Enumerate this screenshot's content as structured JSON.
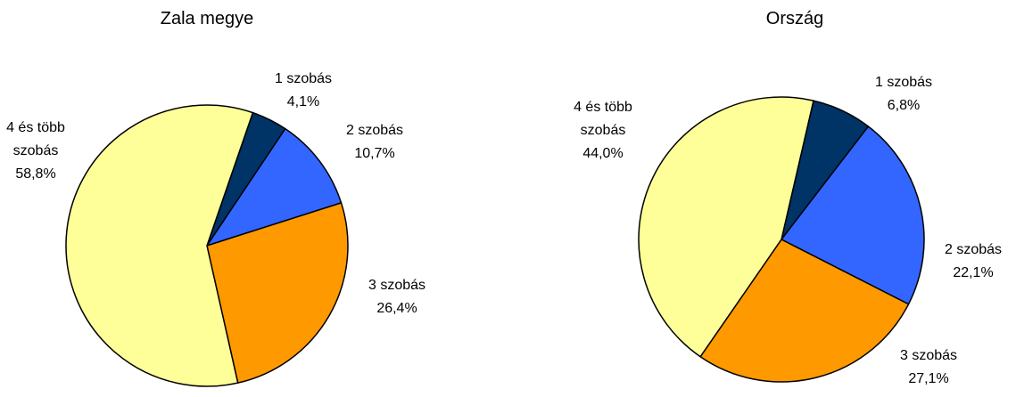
{
  "chart_data": [
    {
      "type": "pie",
      "title": "Zala megye",
      "categories": [
        "1 szobás",
        "2 szobás",
        "3 szobás",
        "4 és több szobás"
      ],
      "values": [
        4.1,
        10.7,
        26.4,
        58.8
      ],
      "unit": "%",
      "labels": [
        {
          "lines": [
            "1 szobás",
            "4,1%"
          ]
        },
        {
          "lines": [
            "2 szobás",
            "10,7%"
          ]
        },
        {
          "lines": [
            "3 szobás",
            "26,4%"
          ]
        },
        {
          "lines": [
            "4 és több",
            "szobás",
            "58,8%"
          ]
        }
      ],
      "legend": "none"
    },
    {
      "type": "pie",
      "title": "Ország",
      "categories": [
        "1 szobás",
        "2 szobás",
        "3 szobás",
        "4 és több szobás"
      ],
      "values": [
        6.8,
        22.1,
        27.1,
        44.0
      ],
      "unit": "%",
      "labels": [
        {
          "lines": [
            "1 szobás",
            "6,8%"
          ]
        },
        {
          "lines": [
            "2 szobás",
            "22,1%"
          ]
        },
        {
          "lines": [
            "3 szobás",
            "27,1%"
          ]
        },
        {
          "lines": [
            "4 és több",
            "szobás",
            "44,0%"
          ]
        }
      ],
      "legend": "none"
    }
  ],
  "colors": {
    "1 szobás": "#003366",
    "2 szobás": "#3366FF",
    "3 szobás": "#FF9900",
    "4 és több szobás": "#FFFF99",
    "outline": "#000000"
  }
}
